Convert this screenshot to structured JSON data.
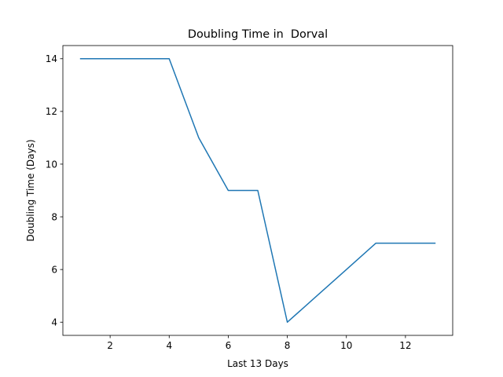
{
  "chart_data": {
    "type": "line",
    "title": "Doubling Time in  Dorval",
    "xlabel": "Last 13 Days",
    "ylabel": "Doubling Time (Days)",
    "xlim": [
      0.4,
      13.6
    ],
    "ylim": [
      3.5,
      14.5
    ],
    "xticks": [
      2,
      4,
      6,
      8,
      10,
      12
    ],
    "yticks": [
      4,
      6,
      8,
      10,
      12,
      14
    ],
    "grid": false,
    "line_color": "#1f77b4",
    "series": [
      {
        "x": [
          1,
          2,
          3,
          4,
          5,
          6,
          7,
          8,
          9,
          10,
          11,
          12,
          13
        ],
        "values": [
          14,
          14,
          14,
          14,
          11,
          9,
          9,
          4,
          5,
          6,
          7,
          7,
          7
        ]
      }
    ]
  }
}
